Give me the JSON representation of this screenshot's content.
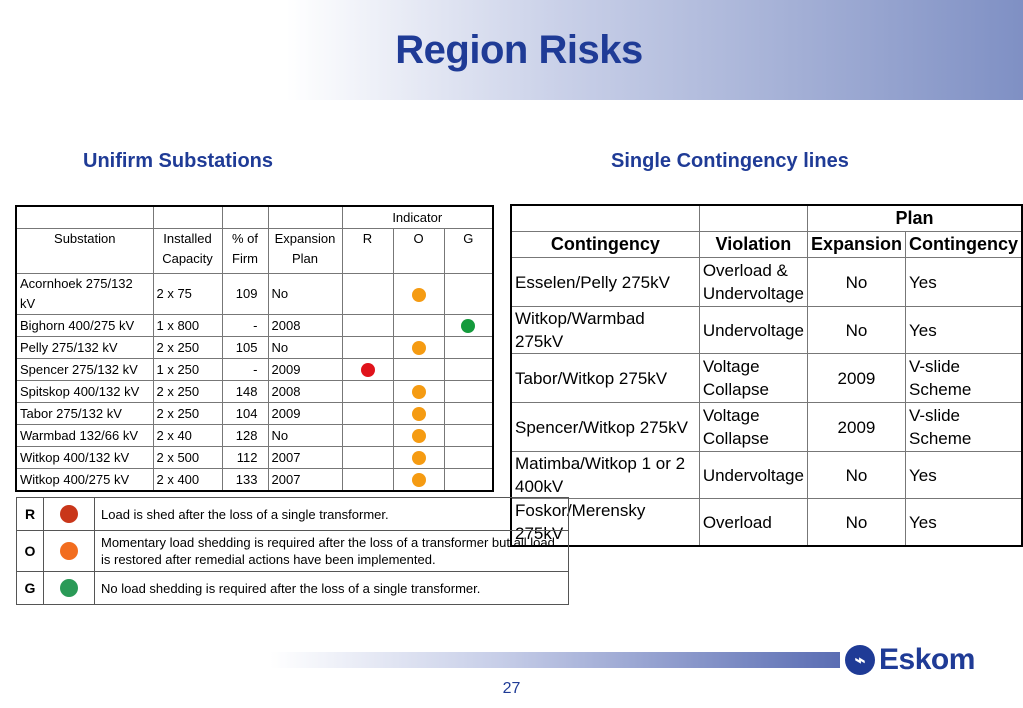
{
  "title": "Region Risks",
  "left_section": {
    "title": "Unifirm Substations"
  },
  "right_section": {
    "title": "Single Contingency lines"
  },
  "substations": {
    "indicator_header": "Indicator",
    "columns": {
      "substation": "Substation",
      "capacity": "Installed Capacity",
      "firm": "% of Firm",
      "expansion": "Expansion Plan",
      "r": "R",
      "o": "O",
      "g": "G"
    },
    "rows": [
      {
        "name": "Acornhoek 275/132 kV",
        "capacity": "2 x 75",
        "firm": "109",
        "plan": "No",
        "indicator": "O"
      },
      {
        "name": "Bighorn 400/275 kV",
        "capacity": "1 x 800",
        "firm": "-",
        "plan": "2008",
        "indicator": "G"
      },
      {
        "name": "Pelly 275/132 kV",
        "capacity": "2 x 250",
        "firm": "105",
        "plan": "No",
        "indicator": "O"
      },
      {
        "name": "Spencer 275/132 kV",
        "capacity": "1 x 250",
        "firm": "-",
        "plan": "2009",
        "indicator": "R"
      },
      {
        "name": "Spitskop 400/132 kV",
        "capacity": "2 x 250",
        "firm": "148",
        "plan": "2008",
        "indicator": "O"
      },
      {
        "name": "Tabor 275/132 kV",
        "capacity": "2 x 250",
        "firm": "104",
        "plan": "2009",
        "indicator": "O"
      },
      {
        "name": "Warmbad 132/66 kV",
        "capacity": "2 x 40",
        "firm": "128",
        "plan": "No",
        "indicator": "O"
      },
      {
        "name": "Witkop 400/132 kV",
        "capacity": "2 x 500",
        "firm": "112",
        "plan": "2007",
        "indicator": "O"
      },
      {
        "name": "Witkop 400/275 kV",
        "capacity": "2 x 400",
        "firm": "133",
        "plan": "2007",
        "indicator": "O"
      }
    ]
  },
  "contingency": {
    "plan_header": "Plan",
    "columns": {
      "contingency": "Contingency",
      "violation": "Violation",
      "expansion": "Expansion",
      "plan_contingency": "Contingency"
    },
    "rows": [
      {
        "line": "Esselen/Pelly 275kV",
        "violation": "Overload & Undervoltage",
        "expansion": "No",
        "plan": "Yes"
      },
      {
        "line": "Witkop/Warmbad 275kV",
        "violation": "Undervoltage",
        "expansion": "No",
        "plan": "Yes"
      },
      {
        "line": "Tabor/Witkop 275kV",
        "violation": "Voltage Collapse",
        "expansion": "2009",
        "plan": "V-slide Scheme"
      },
      {
        "line": "Spencer/Witkop 275kV",
        "violation": "Voltage Collapse",
        "expansion": "2009",
        "plan": "V-slide Scheme"
      },
      {
        "line": "Matimba/Witkop 1 or 2 400kV",
        "violation": "Undervoltage",
        "expansion": "No",
        "plan": "Yes"
      },
      {
        "line": "Foskor/Merensky 275kV",
        "violation": "Overload",
        "expansion": "No",
        "plan": "Yes"
      }
    ]
  },
  "legend": [
    {
      "key": "R",
      "text": "Load is shed after the loss of a single transformer."
    },
    {
      "key": "O",
      "text": "Momentary load shedding is required after the loss of a transformer but all load is restored after remedial actions have been implemented."
    },
    {
      "key": "G",
      "text": "No load shedding is required after the loss of a single transformer."
    }
  ],
  "colors": {
    "red": "#e0131b",
    "orange": "#f59b12",
    "green": "#149a3c",
    "legend_red": "#c9361a",
    "legend_orange": "#f26d1f",
    "legend_green": "#2a9a57"
  },
  "logo_text": "Eskom",
  "page_number": "27"
}
